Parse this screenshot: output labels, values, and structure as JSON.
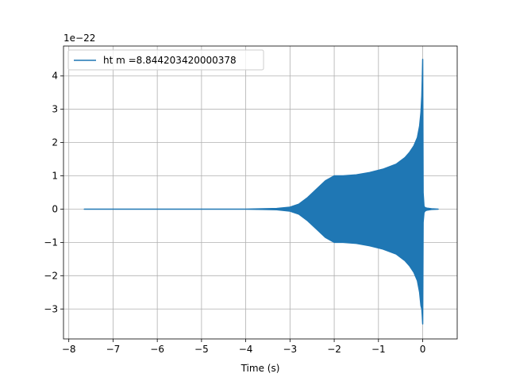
{
  "chart_data": {
    "type": "line",
    "title": "",
    "xlabel": "Time (s)",
    "ylabel": "",
    "y_offset_text": "1e−22",
    "xlim": [
      -8.12,
      0.78
    ],
    "ylim": [
      -3.9,
      4.9
    ],
    "xticks": [
      -8,
      -7,
      -6,
      -5,
      -4,
      -3,
      -2,
      -1,
      0
    ],
    "xtick_labels": [
      "−8",
      "−7",
      "−6",
      "−5",
      "−4",
      "−3",
      "−2",
      "−1",
      "0"
    ],
    "yticks": [
      -3,
      -2,
      -1,
      0,
      1,
      2,
      3,
      4
    ],
    "ytick_labels": [
      "−3",
      "−2",
      "−1",
      "0",
      "1",
      "2",
      "3",
      "4"
    ],
    "grid": true,
    "legend_position": "top-left",
    "series": [
      {
        "name": "ht m =8.844203420000378",
        "color": "#1f77b4",
        "envelope_upper": {
          "x": [
            -7.65,
            -4.0,
            -3.6,
            -3.3,
            -3.0,
            -2.8,
            -2.6,
            -2.4,
            -2.2,
            -2.0,
            -1.8,
            -1.5,
            -1.2,
            -0.9,
            -0.6,
            -0.4,
            -0.3,
            -0.2,
            -0.12,
            -0.07,
            -0.04,
            -0.02,
            -0.01,
            0.0,
            0.01,
            0.03,
            0.06,
            0.1,
            0.2,
            0.35
          ],
          "y": [
            0.0,
            0.0,
            0.01,
            0.02,
            0.06,
            0.15,
            0.35,
            0.6,
            0.85,
            1.0,
            1.0,
            1.03,
            1.1,
            1.2,
            1.35,
            1.55,
            1.7,
            1.9,
            2.15,
            2.5,
            2.9,
            3.4,
            3.9,
            4.5,
            0.5,
            0.08,
            0.04,
            0.03,
            0.01,
            0.0
          ]
        },
        "envelope_lower": {
          "x": [
            -7.65,
            -4.0,
            -3.6,
            -3.3,
            -3.0,
            -2.8,
            -2.6,
            -2.4,
            -2.2,
            -2.0,
            -1.8,
            -1.5,
            -1.2,
            -0.9,
            -0.6,
            -0.4,
            -0.3,
            -0.2,
            -0.12,
            -0.07,
            -0.04,
            -0.02,
            -0.01,
            0.0,
            0.01,
            0.03,
            0.06,
            0.1,
            0.2,
            0.35
          ],
          "y": [
            0.0,
            0.0,
            -0.01,
            -0.02,
            -0.06,
            -0.15,
            -0.35,
            -0.6,
            -0.85,
            -1.0,
            -1.0,
            -1.03,
            -1.1,
            -1.2,
            -1.35,
            -1.55,
            -1.7,
            -1.9,
            -2.15,
            -2.5,
            -2.9,
            -3.0,
            -3.2,
            -3.45,
            -0.4,
            -0.1,
            -0.05,
            -0.03,
            -0.01,
            0.0
          ]
        }
      }
    ]
  }
}
